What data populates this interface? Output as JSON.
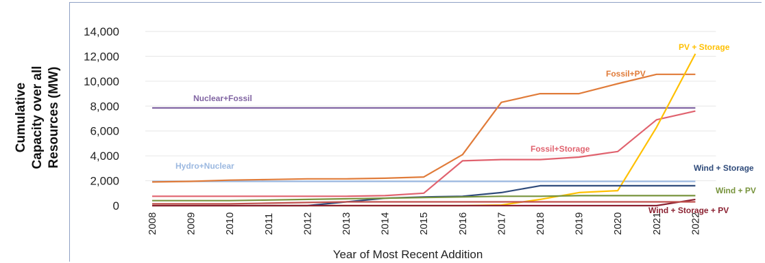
{
  "chart_data": {
    "type": "line",
    "title": "",
    "xlabel": "Year of Most Recent Addition",
    "ylabel_lines": [
      "Cumulative",
      "Capacity over all",
      "Resources (MW)"
    ],
    "ylim": [
      0,
      14000
    ],
    "yticks": [
      "0",
      "2,000",
      "4,000",
      "6,000",
      "8,000",
      "10,000",
      "12,000",
      "14,000"
    ],
    "x": [
      "2008",
      "2009",
      "2010",
      "2011",
      "2012",
      "2013",
      "2014",
      "2015",
      "2016",
      "2017",
      "2018",
      "2019",
      "2020",
      "2021",
      "2022"
    ],
    "grid": true,
    "series": [
      {
        "name": "Nuclear+Fossil",
        "color": "#8064a2",
        "values": [
          7850,
          7850,
          7850,
          7850,
          7850,
          7850,
          7850,
          7850,
          7850,
          7850,
          7850,
          7850,
          7850,
          7850,
          7850
        ]
      },
      {
        "name": "Hydro+Nuclear",
        "color": "#9bb8e0",
        "values": [
          1950,
          1950,
          1950,
          1950,
          1950,
          1950,
          1950,
          1950,
          1950,
          1950,
          1950,
          1950,
          1950,
          1950,
          1950
        ]
      },
      {
        "name": "Fossil+PV",
        "color": "#e07b39",
        "values": [
          1900,
          1950,
          2050,
          2100,
          2150,
          2150,
          2200,
          2300,
          4100,
          8300,
          9000,
          9000,
          9800,
          10550,
          10550
        ]
      },
      {
        "name": "Fossil+Storage",
        "color": "#e0626e",
        "values": [
          750,
          750,
          750,
          750,
          750,
          750,
          800,
          1000,
          3600,
          3700,
          3700,
          3900,
          4350,
          6900,
          7600
        ]
      },
      {
        "name": "PV + Storage",
        "color": "#ffc000",
        "values": [
          0,
          0,
          0,
          0,
          0,
          0,
          0,
          0,
          0,
          50,
          500,
          1050,
          1200,
          6300,
          12200
        ]
      },
      {
        "name": "Wind + Storage",
        "color": "#2e4a7a",
        "values": [
          0,
          0,
          0,
          0,
          0,
          300,
          600,
          700,
          750,
          1050,
          1600,
          1600,
          1600,
          1600,
          1600
        ]
      },
      {
        "name": "Wind + PV",
        "color": "#77933c",
        "values": [
          400,
          400,
          400,
          450,
          500,
          550,
          600,
          650,
          700,
          750,
          750,
          800,
          800,
          800,
          800
        ]
      },
      {
        "name": "Wind + Storage + PV",
        "color": "#8b2131",
        "values": [
          0,
          0,
          0,
          0,
          0,
          0,
          0,
          0,
          0,
          0,
          0,
          0,
          0,
          0,
          500
        ]
      },
      {
        "name": "",
        "color": "#c0504d",
        "values": [
          150,
          150,
          150,
          200,
          250,
          300,
          300,
          300,
          300,
          300,
          300,
          300,
          300,
          300,
          300
        ]
      }
    ]
  }
}
